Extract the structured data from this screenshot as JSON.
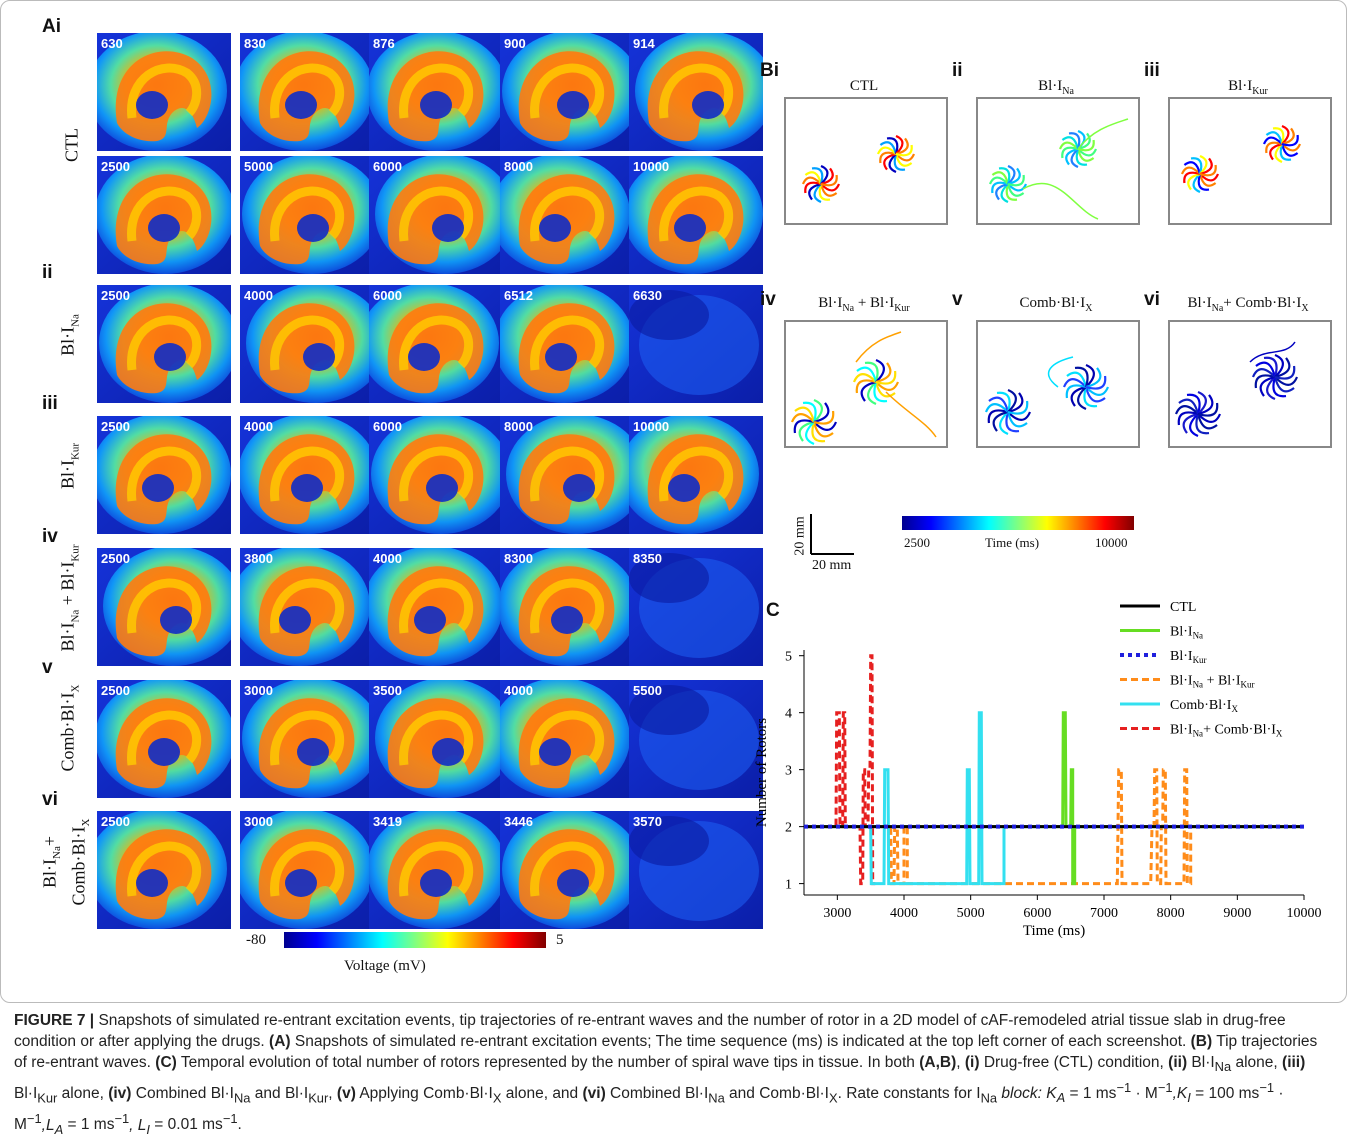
{
  "figure_label_A": "Ai",
  "figure_label_B": "Bi",
  "figure_label_C": "C",
  "rows": [
    {
      "sub": "",
      "label": "CTL",
      "times": [
        "630",
        "830",
        "876",
        "900",
        "914",
        "2500",
        "5000",
        "6000",
        "8000",
        "10000"
      ]
    },
    {
      "sub": "ii",
      "label": "Bl·I_Na",
      "times": [
        "2500",
        "4000",
        "6000",
        "6512",
        "6630"
      ]
    },
    {
      "sub": "iii",
      "label": "Bl·I_Kur",
      "times": [
        "2500",
        "4000",
        "6000",
        "8000",
        "10000"
      ]
    },
    {
      "sub": "iv",
      "label": "Bl·I_Na + Bl·I_Kur",
      "times": [
        "2500",
        "3800",
        "4000",
        "8300",
        "8350"
      ]
    },
    {
      "sub": "v",
      "label": "Comb·Bl·I_X",
      "times": [
        "2500",
        "3000",
        "3500",
        "4000",
        "5500"
      ]
    },
    {
      "sub": "vi",
      "label": "Bl·I_Na+ Comb·Bl·I_X",
      "times": [
        "2500",
        "3000",
        "3419",
        "3446",
        "3570"
      ]
    }
  ],
  "voltage_bar": {
    "min": "-80",
    "max": "5",
    "label": "Voltage (mV)"
  },
  "trajectories": [
    {
      "sub": "i",
      "title": "CTL"
    },
    {
      "sub": "ii",
      "title": "Bl·I_Na"
    },
    {
      "sub": "iii",
      "title": "Bl·I_Kur"
    },
    {
      "sub": "iv",
      "title": "Bl·I_Na + Bl·I_Kur"
    },
    {
      "sub": "v",
      "title": "Comb·Bl·I_X"
    },
    {
      "sub": "vi",
      "title": "Bl·I_Na+ Comb·Bl·I_X"
    }
  ],
  "scale": {
    "vertical": "20 mm",
    "horizontal": "20 mm"
  },
  "time_bar": {
    "min": "2500",
    "max": "10000",
    "label": "Time (ms)"
  },
  "chart_data": {
    "type": "line",
    "xlabel": "Time (ms)",
    "ylabel": "Number of Rotors",
    "xlim": [
      2500,
      10000
    ],
    "ylim": [
      0.8,
      5.1
    ],
    "xticks": [
      3000,
      4000,
      5000,
      6000,
      7000,
      8000,
      9000,
      10000
    ],
    "yticks": [
      1,
      2,
      3,
      4,
      5
    ],
    "series": [
      {
        "name": "CTL",
        "color": "#000000",
        "dash": "solid",
        "points": [
          [
            2500,
            2
          ],
          [
            10000,
            2
          ]
        ]
      },
      {
        "name": "Bl·I_Na",
        "color": "#66dd22",
        "dash": "solid",
        "points": [
          [
            2500,
            2
          ],
          [
            6380,
            2
          ],
          [
            6390,
            4
          ],
          [
            6420,
            4
          ],
          [
            6430,
            2
          ],
          [
            6500,
            2
          ],
          [
            6510,
            3
          ],
          [
            6530,
            3
          ],
          [
            6530,
            1
          ],
          [
            6560,
            1
          ],
          [
            6560,
            2
          ],
          [
            10000,
            2
          ]
        ]
      },
      {
        "name": "Bl·I_Kur",
        "color": "#1f1fdd",
        "dash": "dotted",
        "points": [
          [
            2500,
            2
          ],
          [
            10000,
            2
          ]
        ]
      },
      {
        "name": "Bl·I_Na + Bl·I_Kur",
        "color": "#ff8c1a",
        "dash": "dashed",
        "points": [
          [
            2500,
            2
          ],
          [
            3800,
            2
          ],
          [
            3810,
            1
          ],
          [
            3850,
            1
          ],
          [
            3860,
            2
          ],
          [
            3900,
            2
          ],
          [
            3910,
            1
          ],
          [
            4000,
            1
          ],
          [
            4000,
            2
          ],
          [
            4050,
            2
          ],
          [
            4050,
            1
          ],
          [
            7200,
            1
          ],
          [
            7220,
            3
          ],
          [
            7260,
            3
          ],
          [
            7270,
            1
          ],
          [
            7700,
            1
          ],
          [
            7720,
            2
          ],
          [
            7750,
            2
          ],
          [
            7760,
            3
          ],
          [
            7790,
            3
          ],
          [
            7800,
            1
          ],
          [
            7850,
            1
          ],
          [
            7860,
            2
          ],
          [
            7880,
            2
          ],
          [
            7890,
            3
          ],
          [
            7920,
            3
          ],
          [
            7930,
            1
          ],
          [
            8000,
            1
          ],
          [
            8200,
            1
          ],
          [
            8210,
            3
          ],
          [
            8240,
            3
          ],
          [
            8250,
            1
          ],
          [
            8300,
            1
          ],
          [
            8300,
            2
          ],
          [
            10000,
            2
          ]
        ]
      },
      {
        "name": "Comb·Bl·I_X",
        "color": "#33e0f0",
        "dash": "solid",
        "points": [
          [
            2500,
            2
          ],
          [
            3500,
            2
          ],
          [
            3510,
            1
          ],
          [
            3700,
            1
          ],
          [
            3710,
            3
          ],
          [
            3760,
            3
          ],
          [
            3770,
            1
          ],
          [
            4940,
            1
          ],
          [
            4950,
            3
          ],
          [
            4980,
            3
          ],
          [
            4990,
            1
          ],
          [
            5120,
            1
          ],
          [
            5130,
            4
          ],
          [
            5160,
            4
          ],
          [
            5170,
            1
          ],
          [
            5500,
            1
          ],
          [
            5500,
            2
          ],
          [
            10000,
            2
          ]
        ]
      },
      {
        "name": "Bl·I_Na+ Comb·Bl·I_X",
        "color": "#e62020",
        "dash": "dashed",
        "points": [
          [
            2500,
            2
          ],
          [
            2980,
            2
          ],
          [
            2990,
            4
          ],
          [
            3030,
            4
          ],
          [
            3040,
            2
          ],
          [
            3080,
            2
          ],
          [
            3090,
            4
          ],
          [
            3110,
            4
          ],
          [
            3120,
            2
          ],
          [
            3340,
            2
          ],
          [
            3350,
            1
          ],
          [
            3380,
            1
          ],
          [
            3390,
            3
          ],
          [
            3410,
            3
          ],
          [
            3420,
            2
          ],
          [
            3460,
            2
          ],
          [
            3470,
            3
          ],
          [
            3490,
            3
          ],
          [
            3500,
            5
          ],
          [
            3520,
            5
          ],
          [
            3530,
            1
          ],
          [
            3570,
            1
          ]
        ]
      }
    ]
  },
  "caption": {
    "fig": "FIGURE 7 |",
    "text1": " Snapshots of simulated re-entrant excitation events, tip trajectories of re-entrant waves and the number of rotor in a 2D model of cAF-remodeled atrial tissue slab in drug-free condition or after applying the drugs. ",
    "a": "(A)",
    "text2": " Snapshots of simulated re-entrant excitation events; The time sequence (ms) is indicated at the top left corner of each screenshot. ",
    "b": "(B)",
    "text3": " Tip trajectories of re-entrant waves. ",
    "c": "(C)",
    "text4": " Temporal evolution of total number of rotors represented by the number of spiral wave tips in tissue. In both ",
    "ab": "(A,B)",
    "text5": ", ",
    "i": "(i)",
    "text6": " Drug-free (CTL) condition, ",
    "ii": "(ii)",
    "text7": " Bl·I",
    "ii_sub": "Na",
    "text8": " alone, ",
    "iii": "(iii)",
    "text9": " Bl·I",
    "iii_sub": "Kur",
    "text10": " alone, ",
    "iv": "(iv)",
    "text11": " Combined Bl·I",
    "iv_sub1": "Na",
    "text12": " and Bl·I",
    "iv_sub2": "Kur",
    "text13": ", ",
    "v": "(v)",
    "text14": " Applying Comb·Bl·I",
    "v_sub": "X",
    "text15": " alone, and ",
    "vi": "(vi)",
    "text16": " Combined Bl·I",
    "vi_sub1": "Na",
    "text17": " and Comb·Bl·I",
    "vi_sub2": "X",
    "text18": ". Rate constants for I",
    "rate_sub": "Na",
    "text19": " block: K",
    "ka_sub": "A",
    "text20": " = 1 ms",
    "sup1": "−1",
    "text21": " · M",
    "sup2": "−1",
    "text22": ",K",
    "ki_sub": "I",
    "text23": " = 100 ms",
    "sup3": "−1",
    "text24": " · M",
    "sup4": "−1",
    "text25": ",L",
    "la_sub": "A",
    "text26": " = 1 ms",
    "sup5": "−1",
    "text27": ", L",
    "li_sub": "I",
    "text28": " = 0.01 ms",
    "sup6": "−1",
    "text29": "."
  }
}
